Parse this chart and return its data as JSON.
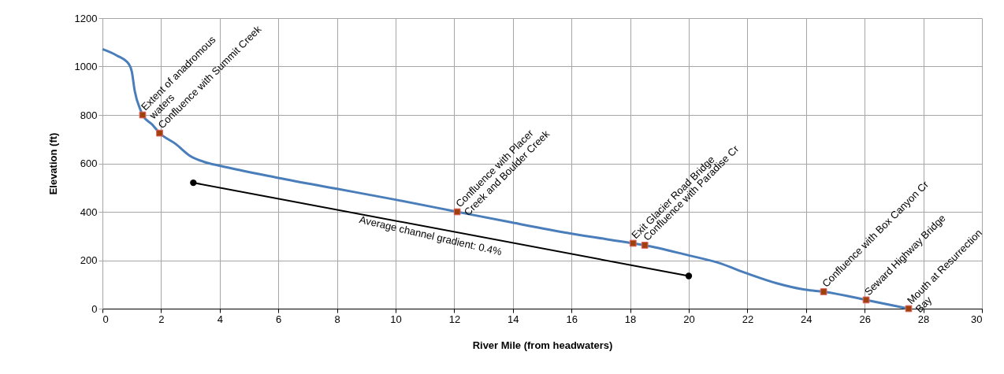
{
  "chart_data": {
    "type": "line",
    "xlabel": "River Mile (from headwaters)",
    "ylabel": "Elevation (ft)",
    "xlim": [
      0,
      30
    ],
    "xticks": [
      0,
      2,
      4,
      6,
      8,
      10,
      12,
      14,
      16,
      18,
      20,
      22,
      24,
      26,
      28,
      30
    ],
    "ylim": [
      0,
      1200
    ],
    "yticks": [
      0,
      200,
      400,
      600,
      800,
      1000,
      1200
    ],
    "grid": true,
    "series": [
      {
        "color": "#4a7ebb",
        "marker": "none",
        "x": [
          0,
          0.5,
          0.9,
          1.0,
          1.1,
          1.3,
          1.37,
          1.7,
          1.95,
          2.5,
          3,
          3.5,
          4,
          6,
          8,
          10,
          12.1,
          14,
          16,
          18.1,
          18.5,
          20,
          21,
          22,
          23,
          24,
          24.6,
          26.05,
          27.5
        ],
        "values": [
          1072,
          1045,
          1010,
          980,
          900,
          820,
          800,
          760,
          725,
          680,
          630,
          605,
          590,
          540,
          495,
          450,
          400,
          355,
          310,
          270,
          262,
          220,
          190,
          145,
          105,
          78,
          70,
          36,
          0
        ]
      },
      {
        "type": "line",
        "color": "#000000",
        "marker": "circle",
        "x": [
          3.1,
          20
        ],
        "values": [
          520,
          135
        ]
      },
      {
        "type": "scatter",
        "color": "#a0410d",
        "marker": "square",
        "x": [
          1.37,
          1.95,
          12.1,
          18.1,
          18.5,
          24.6,
          26.05,
          27.5
        ],
        "values": [
          800,
          725,
          400,
          270,
          262,
          70,
          36,
          0
        ],
        "value_labels": [
          "Extent of anadromous\nwaters",
          "Confluence with  Summit Creek",
          "Confluence with Placer\nCreek and Boulder Creek",
          "Exit Glacier Road Bridge",
          "Confluence with Paradise Cr",
          "Confluence with Box Canyon Cr",
          "Seward Highway Bridge",
          "Mouth at Resurrection\nBay"
        ]
      }
    ],
    "annotations": [
      "Average channel gradient: 0.4%"
    ]
  }
}
